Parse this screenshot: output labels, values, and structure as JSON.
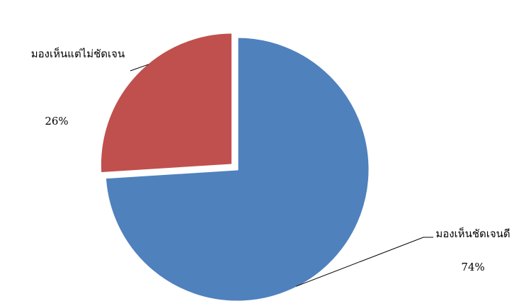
{
  "chart_data": {
    "type": "pie",
    "categories": [
      "มองเห็นชัดเจนดี",
      "มองเห็นแต่ไม่ชัดเจน"
    ],
    "values": [
      74,
      26
    ],
    "value_labels": [
      "74%",
      "26%"
    ],
    "colors": [
      "#4f81bd",
      "#c0504d"
    ],
    "explode": [
      false,
      true
    ]
  }
}
